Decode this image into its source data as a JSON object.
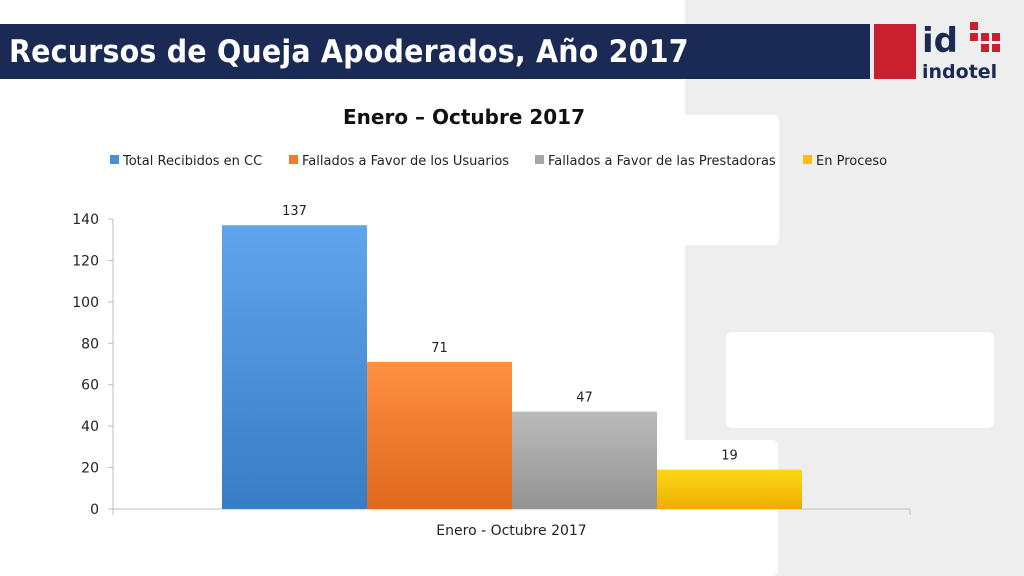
{
  "slide": {
    "title": "Recursos de Queja Apoderados, Año 2017"
  },
  "logo": {
    "top_text": "id",
    "bottom_text": "indotel",
    "brand_red": "#c8202f",
    "brand_navy": "#1b2a55"
  },
  "chart_data": {
    "type": "bar",
    "title": "Enero – Octubre 2017",
    "categories": [
      "Enero - Octubre 2017"
    ],
    "series": [
      {
        "name": "Total Recibidos en CC",
        "values": [
          137
        ],
        "color": "#4a8fd6"
      },
      {
        "name": "Fallados a Favor de los Usuarios",
        "values": [
          71
        ],
        "color": "#f07a2e"
      },
      {
        "name": "Fallados a Favor de las Prestadoras",
        "values": [
          47
        ],
        "color": "#a5a5a5"
      },
      {
        "name": "En Proceso",
        "values": [
          19
        ],
        "color": "#ffc000"
      }
    ],
    "ylim": [
      0,
      140
    ],
    "yticks": [
      0,
      20,
      40,
      60,
      80,
      100,
      120,
      140
    ],
    "legend_position": "top",
    "grid": false,
    "xlabel": "",
    "ylabel": ""
  }
}
